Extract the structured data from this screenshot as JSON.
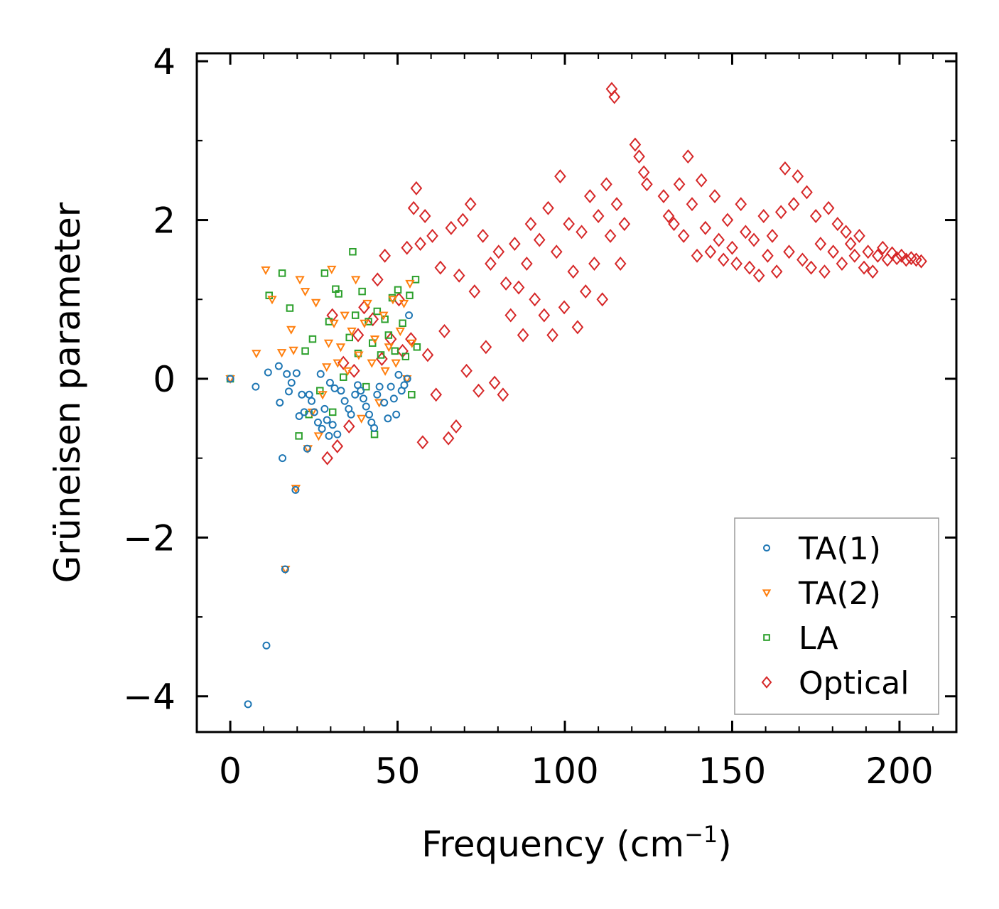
{
  "chart_data": {
    "type": "scatter",
    "title": "",
    "xlabel": "Frequency (cm",
    "xlabel_superscript": "−1",
    "xlabel_suffix": ")",
    "ylabel": "Grüneisen parameter",
    "xlim": [
      -10,
      217
    ],
    "ylim": [
      -4.45,
      4.1
    ],
    "x_ticks": [
      0,
      50,
      100,
      150,
      200
    ],
    "x_tick_labels": [
      "0",
      "50",
      "100",
      "150",
      "200"
    ],
    "y_ticks": [
      -4,
      -2,
      0,
      2,
      4
    ],
    "y_tick_labels": [
      "−4",
      "−2",
      "0",
      "2",
      "4"
    ],
    "grid": false,
    "legend_position": "bottom-right",
    "series": [
      {
        "name": "TA(1)",
        "marker": "circle",
        "color": "#1f77b4",
        "points": [
          [
            0,
            0
          ],
          [
            5.3,
            -4.1
          ],
          [
            7.6,
            -0.1
          ],
          [
            10.8,
            -3.36
          ],
          [
            11.3,
            0.08
          ],
          [
            14.5,
            0.16
          ],
          [
            14.8,
            -0.3
          ],
          [
            15.6,
            -1.0
          ],
          [
            16.4,
            -2.4
          ],
          [
            16.9,
            0.06
          ],
          [
            17.5,
            -0.16
          ],
          [
            18.3,
            -0.05
          ],
          [
            19.5,
            -1.4
          ],
          [
            19.8,
            0.07
          ],
          [
            20.6,
            -0.47
          ],
          [
            21.4,
            -0.2
          ],
          [
            22.1,
            -0.42
          ],
          [
            23.0,
            -0.88
          ],
          [
            23.6,
            -0.2
          ],
          [
            24.3,
            -0.28
          ],
          [
            25.1,
            -0.42
          ],
          [
            26.2,
            -0.55
          ],
          [
            27.0,
            0.06
          ],
          [
            27.4,
            -0.63
          ],
          [
            28.2,
            -0.38
          ],
          [
            28.9,
            -0.52
          ],
          [
            29.5,
            -0.72
          ],
          [
            29.8,
            -0.05
          ],
          [
            30.6,
            -0.58
          ],
          [
            31.2,
            -0.12
          ],
          [
            32.0,
            -0.7
          ],
          [
            33.1,
            -0.15
          ],
          [
            34.2,
            -0.28
          ],
          [
            35.4,
            -0.38
          ],
          [
            36.1,
            -0.45
          ],
          [
            37.3,
            -0.2
          ],
          [
            38.1,
            -0.08
          ],
          [
            39.0,
            -0.15
          ],
          [
            39.8,
            -0.25
          ],
          [
            40.6,
            -0.35
          ],
          [
            41.5,
            -0.45
          ],
          [
            42.2,
            -0.55
          ],
          [
            43.0,
            -0.62
          ],
          [
            43.9,
            -0.2
          ],
          [
            44.6,
            -0.1
          ],
          [
            46.0,
            -0.3
          ],
          [
            47.1,
            -0.5
          ],
          [
            48.0,
            -0.1
          ],
          [
            48.9,
            -0.25
          ],
          [
            49.6,
            -0.45
          ],
          [
            50.3,
            0.05
          ],
          [
            51.2,
            -0.15
          ],
          [
            52.0,
            -0.08
          ],
          [
            52.9,
            0.0
          ],
          [
            53.4,
            0.8
          ]
        ]
      },
      {
        "name": "TA(2)",
        "marker": "triangle-down",
        "color": "#ff7f0e",
        "points": [
          [
            0,
            0
          ],
          [
            7.8,
            0.32
          ],
          [
            10.6,
            1.37
          ],
          [
            12.5,
            1.0
          ],
          [
            15.4,
            0.33
          ],
          [
            16.5,
            -2.4
          ],
          [
            18.2,
            0.62
          ],
          [
            18.9,
            0.36
          ],
          [
            19.6,
            -1.38
          ],
          [
            20.8,
            1.25
          ],
          [
            22.4,
            1.1
          ],
          [
            23.2,
            -0.88
          ],
          [
            24.5,
            -0.42
          ],
          [
            25.6,
            0.96
          ],
          [
            26.4,
            -0.72
          ],
          [
            27.6,
            -0.2
          ],
          [
            28.8,
            0.15
          ],
          [
            29.4,
            0.45
          ],
          [
            30.3,
            1.38
          ],
          [
            31.0,
            0.7
          ],
          [
            32.1,
            0.2
          ],
          [
            33.0,
            0.4
          ],
          [
            34.2,
            0.8
          ],
          [
            35.1,
            0.1
          ],
          [
            36.3,
            0.6
          ],
          [
            37.5,
            1.25
          ],
          [
            38.4,
            0.3
          ],
          [
            39.2,
            -0.5
          ],
          [
            40.1,
            0.7
          ],
          [
            41.0,
            0.95
          ],
          [
            42.3,
            0.2
          ],
          [
            43.2,
            0.5
          ],
          [
            44.5,
            -0.3
          ],
          [
            45.8,
            0.8
          ],
          [
            46.3,
            0.1
          ],
          [
            47.4,
            0.4
          ],
          [
            48.6,
            1.0
          ],
          [
            49.5,
            0.2
          ],
          [
            50.8,
            0.6
          ],
          [
            51.9,
            0.95
          ],
          [
            52.8,
            0.0
          ],
          [
            53.7,
            1.2
          ],
          [
            54.3,
            0.45
          ]
        ]
      },
      {
        "name": "LA",
        "marker": "square",
        "color": "#2ca02c",
        "points": [
          [
            0,
            0
          ],
          [
            11.6,
            1.05
          ],
          [
            15.5,
            1.33
          ],
          [
            17.8,
            0.89
          ],
          [
            20.5,
            -0.72
          ],
          [
            22.4,
            0.35
          ],
          [
            23.5,
            -0.45
          ],
          [
            24.6,
            0.5
          ],
          [
            26.8,
            -0.15
          ],
          [
            28.2,
            1.33
          ],
          [
            29.5,
            0.72
          ],
          [
            30.6,
            -0.42
          ],
          [
            31.5,
            1.13
          ],
          [
            32.4,
            1.07
          ],
          [
            33.8,
            0.02
          ],
          [
            35.6,
            0.52
          ],
          [
            36.6,
            1.6
          ],
          [
            37.4,
            0.8
          ],
          [
            38.2,
            0.32
          ],
          [
            39.4,
            1.1
          ],
          [
            40.6,
            -0.1
          ],
          [
            41.3,
            0.72
          ],
          [
            42.5,
            0.45
          ],
          [
            43.1,
            -0.7
          ],
          [
            43.9,
            0.85
          ],
          [
            45.0,
            0.3
          ],
          [
            46.2,
            0.75
          ],
          [
            47.3,
            0.55
          ],
          [
            48.4,
            1.02
          ],
          [
            49.2,
            0.35
          ],
          [
            50.1,
            1.12
          ],
          [
            51.5,
            0.7
          ],
          [
            52.4,
            0.28
          ],
          [
            53.6,
            1.05
          ],
          [
            54.2,
            -0.2
          ],
          [
            55.4,
            1.25
          ],
          [
            55.8,
            0.4
          ]
        ]
      },
      {
        "name": "Optical",
        "marker": "diamond",
        "color": "#d62728",
        "points": [
          [
            29.0,
            -1.0
          ],
          [
            30.5,
            0.8
          ],
          [
            32.0,
            -0.85
          ],
          [
            33.8,
            0.2
          ],
          [
            35.5,
            -0.6
          ],
          [
            37.0,
            0.1
          ],
          [
            38.2,
            0.55
          ],
          [
            40.0,
            0.9
          ],
          [
            42.6,
            0.75
          ],
          [
            44.0,
            1.25
          ],
          [
            45.3,
            0.25
          ],
          [
            46.2,
            1.55
          ],
          [
            48.0,
            0.5
          ],
          [
            50.4,
            1.0
          ],
          [
            51.5,
            0.35
          ],
          [
            52.8,
            1.65
          ],
          [
            54.0,
            0.5
          ],
          [
            54.8,
            2.15
          ],
          [
            55.6,
            2.4
          ],
          [
            56.8,
            1.7
          ],
          [
            57.5,
            -0.8
          ],
          [
            58.2,
            2.05
          ],
          [
            59.0,
            0.3
          ],
          [
            60.4,
            1.8
          ],
          [
            61.5,
            -0.2
          ],
          [
            62.8,
            1.4
          ],
          [
            64.0,
            0.6
          ],
          [
            65.2,
            -0.75
          ],
          [
            66.0,
            1.9
          ],
          [
            67.5,
            -0.6
          ],
          [
            68.4,
            1.3
          ],
          [
            69.5,
            2.0
          ],
          [
            70.6,
            0.1
          ],
          [
            71.8,
            2.2
          ],
          [
            73.0,
            1.1
          ],
          [
            74.2,
            -0.15
          ],
          [
            75.5,
            1.8
          ],
          [
            76.4,
            0.4
          ],
          [
            77.8,
            1.45
          ],
          [
            79.0,
            -0.05
          ],
          [
            80.2,
            1.6
          ],
          [
            81.5,
            -0.2
          ],
          [
            82.4,
            1.2
          ],
          [
            83.8,
            0.8
          ],
          [
            85.0,
            1.7
          ],
          [
            86.2,
            1.15
          ],
          [
            87.5,
            0.55
          ],
          [
            88.6,
            1.45
          ],
          [
            89.8,
            1.95
          ],
          [
            91.0,
            1.0
          ],
          [
            92.4,
            1.75
          ],
          [
            93.8,
            0.8
          ],
          [
            95.0,
            2.15
          ],
          [
            96.3,
            0.55
          ],
          [
            97.5,
            1.6
          ],
          [
            98.6,
            2.55
          ],
          [
            99.8,
            0.9
          ],
          [
            101.2,
            1.95
          ],
          [
            102.5,
            1.35
          ],
          [
            103.8,
            0.65
          ],
          [
            105.0,
            1.85
          ],
          [
            106.2,
            1.1
          ],
          [
            107.5,
            2.3
          ],
          [
            108.8,
            1.45
          ],
          [
            110.0,
            2.05
          ],
          [
            111.2,
            1.0
          ],
          [
            112.4,
            2.45
          ],
          [
            113.6,
            1.8
          ],
          [
            114.0,
            3.65
          ],
          [
            114.8,
            3.55
          ],
          [
            115.5,
            2.2
          ],
          [
            116.6,
            1.45
          ],
          [
            117.8,
            1.95
          ],
          [
            121.0,
            2.95
          ],
          [
            122.2,
            2.8
          ],
          [
            123.6,
            2.6
          ],
          [
            124.5,
            2.45
          ],
          [
            129.5,
            2.3
          ],
          [
            131.0,
            2.05
          ],
          [
            132.6,
            1.95
          ],
          [
            134.2,
            2.45
          ],
          [
            135.5,
            1.8
          ],
          [
            136.8,
            2.8
          ],
          [
            138.0,
            2.2
          ],
          [
            139.5,
            1.55
          ],
          [
            140.8,
            2.5
          ],
          [
            142.0,
            1.9
          ],
          [
            143.5,
            1.6
          ],
          [
            144.8,
            2.3
          ],
          [
            146.0,
            1.75
          ],
          [
            147.4,
            1.5
          ],
          [
            148.6,
            2.0
          ],
          [
            150.0,
            1.65
          ],
          [
            151.3,
            1.45
          ],
          [
            152.6,
            2.2
          ],
          [
            154.0,
            1.85
          ],
          [
            155.2,
            1.4
          ],
          [
            156.5,
            1.75
          ],
          [
            158.0,
            1.3
          ],
          [
            159.4,
            2.05
          ],
          [
            160.6,
            1.55
          ],
          [
            162.0,
            1.8
          ],
          [
            163.3,
            1.35
          ],
          [
            164.6,
            2.1
          ],
          [
            165.8,
            2.65
          ],
          [
            167.0,
            1.6
          ],
          [
            168.4,
            2.2
          ],
          [
            169.6,
            2.55
          ],
          [
            171.0,
            1.5
          ],
          [
            172.3,
            2.35
          ],
          [
            173.6,
            1.4
          ],
          [
            175.0,
            2.05
          ],
          [
            176.4,
            1.7
          ],
          [
            177.6,
            1.35
          ],
          [
            178.8,
            2.15
          ],
          [
            180.2,
            1.6
          ],
          [
            181.5,
            1.95
          ],
          [
            182.8,
            1.45
          ],
          [
            184.0,
            1.85
          ],
          [
            185.4,
            1.7
          ],
          [
            186.6,
            1.55
          ],
          [
            188.0,
            1.8
          ],
          [
            189.4,
            1.4
          ],
          [
            190.6,
            1.6
          ],
          [
            192.0,
            1.35
          ],
          [
            193.5,
            1.55
          ],
          [
            195.0,
            1.65
          ],
          [
            196.4,
            1.5
          ],
          [
            197.8,
            1.58
          ],
          [
            199.2,
            1.52
          ],
          [
            200.6,
            1.55
          ],
          [
            202.0,
            1.5
          ],
          [
            203.5,
            1.52
          ],
          [
            205.0,
            1.5
          ],
          [
            206.5,
            1.48
          ]
        ]
      }
    ]
  }
}
